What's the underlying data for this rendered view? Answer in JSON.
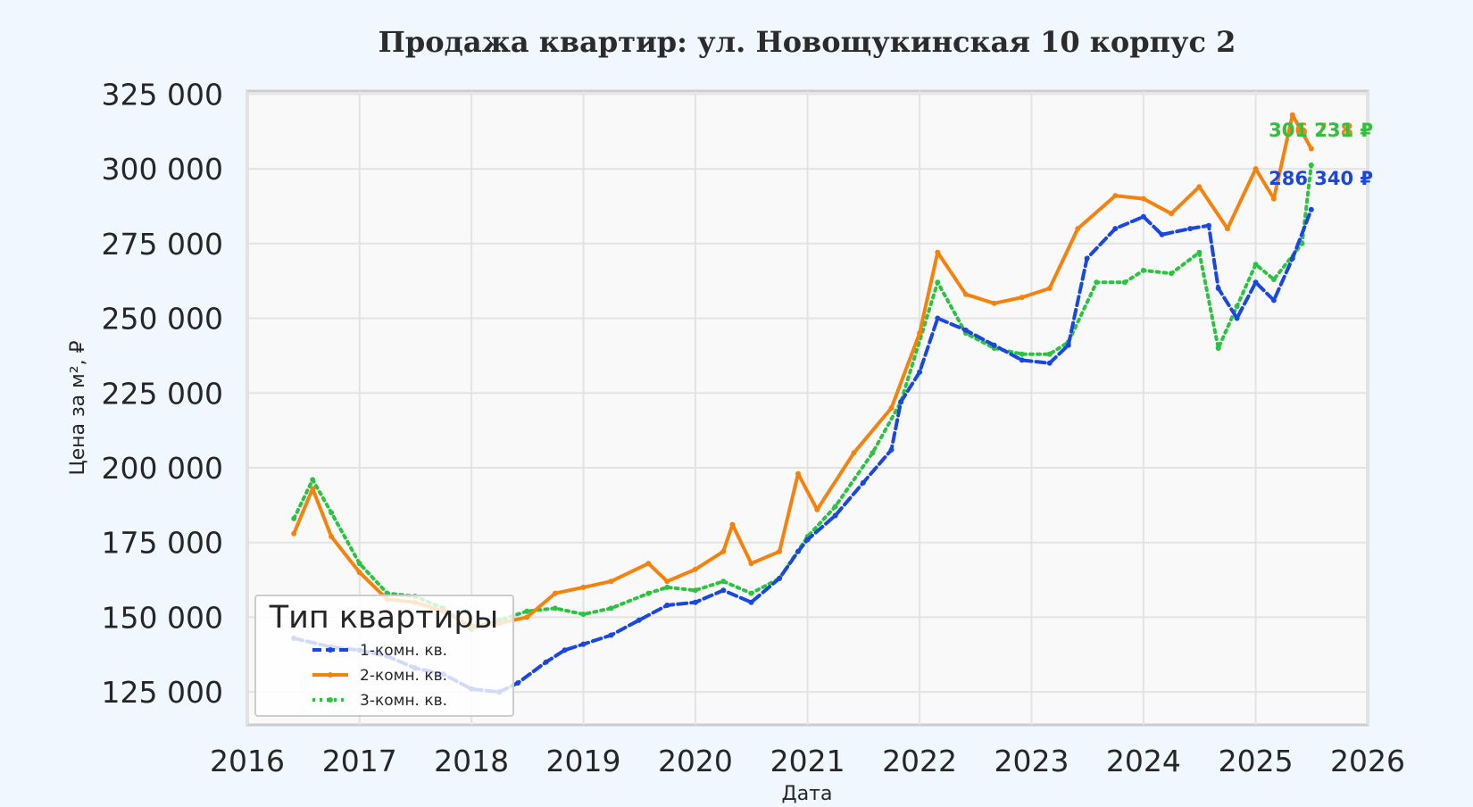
{
  "chart_data": {
    "type": "line",
    "title": "Продажа квартир: ул. Новощукинская 10 корпус 2",
    "xlabel": "Дата",
    "ylabel": "Цена за м², ₽",
    "xlim": [
      "2016-01-01",
      "2026-01-01"
    ],
    "ylim": [
      114000,
      326000
    ],
    "x_ticks": [
      "2016",
      "2017",
      "2018",
      "2019",
      "2020",
      "2021",
      "2022",
      "2023",
      "2024",
      "2025",
      "2026"
    ],
    "y_ticks": [
      125000,
      150000,
      175000,
      200000,
      225000,
      250000,
      275000,
      300000,
      325000
    ],
    "y_tick_labels": [
      "125 000",
      "150 000",
      "175 000",
      "200 000",
      "225 000",
      "250 000",
      "275 000",
      "300 000",
      "325 000"
    ],
    "grid": true,
    "legend": {
      "title": "Тип квартиры",
      "placement": "lower-left",
      "entries": [
        "1-комн. кв.",
        "2-комн. кв.",
        "3-комн. кв."
      ]
    },
    "series": [
      {
        "name": "1-комн. кв.",
        "color": "#1a47e0",
        "style": "dashed",
        "last_label": "286 340 ₽",
        "points": [
          [
            "2016-06-01",
            143000
          ],
          [
            "2016-10-01",
            140000
          ],
          [
            "2017-01-01",
            139000
          ],
          [
            "2017-04-01",
            137000
          ],
          [
            "2017-07-01",
            133000
          ],
          [
            "2017-10-01",
            131000
          ],
          [
            "2018-01-01",
            126000
          ],
          [
            "2018-04-01",
            125000
          ],
          [
            "2018-06-01",
            128000
          ],
          [
            "2018-09-01",
            135000
          ],
          [
            "2018-11-01",
            139000
          ],
          [
            "2019-01-01",
            141000
          ],
          [
            "2019-04-01",
            144000
          ],
          [
            "2019-07-01",
            149000
          ],
          [
            "2019-10-01",
            154000
          ],
          [
            "2020-01-01",
            155000
          ],
          [
            "2020-04-01",
            159000
          ],
          [
            "2020-07-01",
            155000
          ],
          [
            "2020-10-01",
            163000
          ],
          [
            "2020-12-01",
            172000
          ],
          [
            "2021-01-01",
            176000
          ],
          [
            "2021-04-01",
            184000
          ],
          [
            "2021-07-01",
            195000
          ],
          [
            "2021-10-01",
            206000
          ],
          [
            "2021-11-01",
            222000
          ],
          [
            "2022-01-01",
            232000
          ],
          [
            "2022-03-01",
            250000
          ],
          [
            "2022-06-01",
            246000
          ],
          [
            "2022-09-01",
            241000
          ],
          [
            "2022-12-01",
            236000
          ],
          [
            "2023-03-01",
            235000
          ],
          [
            "2023-05-01",
            241000
          ],
          [
            "2023-07-01",
            270000
          ],
          [
            "2023-10-01",
            280000
          ],
          [
            "2024-01-01",
            284000
          ],
          [
            "2024-03-01",
            278000
          ],
          [
            "2024-06-01",
            280000
          ],
          [
            "2024-08-01",
            281000
          ],
          [
            "2024-09-01",
            260000
          ],
          [
            "2024-11-01",
            250000
          ],
          [
            "2025-01-01",
            262000
          ],
          [
            "2025-03-01",
            256000
          ],
          [
            "2025-05-01",
            270000
          ],
          [
            "2025-07-01",
            286340
          ]
        ]
      },
      {
        "name": "2-комн. кв.",
        "color": "#f5820d",
        "style": "solid",
        "last_label": "306 738 ₽",
        "points": [
          [
            "2016-06-01",
            178000
          ],
          [
            "2016-08-01",
            193000
          ],
          [
            "2016-10-01",
            177000
          ],
          [
            "2017-01-01",
            165000
          ],
          [
            "2017-04-01",
            156000
          ],
          [
            "2017-07-01",
            155000
          ],
          [
            "2017-10-01",
            152000
          ],
          [
            "2018-01-01",
            147000
          ],
          [
            "2018-04-01",
            148000
          ],
          [
            "2018-07-01",
            150000
          ],
          [
            "2018-10-01",
            158000
          ],
          [
            "2019-01-01",
            160000
          ],
          [
            "2019-04-01",
            162000
          ],
          [
            "2019-08-01",
            168000
          ],
          [
            "2019-10-01",
            162000
          ],
          [
            "2020-01-01",
            166000
          ],
          [
            "2020-04-01",
            172000
          ],
          [
            "2020-05-01",
            181000
          ],
          [
            "2020-07-01",
            168000
          ],
          [
            "2020-10-01",
            172000
          ],
          [
            "2020-12-01",
            198000
          ],
          [
            "2021-02-01",
            186000
          ],
          [
            "2021-06-01",
            205000
          ],
          [
            "2021-10-01",
            220000
          ],
          [
            "2022-01-01",
            245000
          ],
          [
            "2022-03-01",
            272000
          ],
          [
            "2022-06-01",
            258000
          ],
          [
            "2022-09-01",
            255000
          ],
          [
            "2022-12-01",
            257000
          ],
          [
            "2023-03-01",
            260000
          ],
          [
            "2023-06-01",
            280000
          ],
          [
            "2023-10-01",
            291000
          ],
          [
            "2024-01-01",
            290000
          ],
          [
            "2024-04-01",
            285000
          ],
          [
            "2024-07-01",
            294000
          ],
          [
            "2024-10-01",
            280000
          ],
          [
            "2025-01-01",
            300000
          ],
          [
            "2025-03-01",
            290000
          ],
          [
            "2025-05-01",
            318000
          ],
          [
            "2025-07-01",
            306738
          ]
        ]
      },
      {
        "name": "3-комн. кв.",
        "color": "#2ec243",
        "style": "dotted",
        "last_label": "301 231 ₽",
        "points": [
          [
            "2016-06-01",
            183000
          ],
          [
            "2016-08-01",
            196000
          ],
          [
            "2016-10-01",
            185000
          ],
          [
            "2017-01-01",
            168000
          ],
          [
            "2017-04-01",
            158000
          ],
          [
            "2017-07-01",
            157000
          ],
          [
            "2017-10-01",
            153000
          ],
          [
            "2018-01-01",
            146000
          ],
          [
            "2018-04-01",
            149000
          ],
          [
            "2018-07-01",
            152000
          ],
          [
            "2018-10-01",
            153000
          ],
          [
            "2019-01-01",
            151000
          ],
          [
            "2019-04-01",
            153000
          ],
          [
            "2019-08-01",
            158000
          ],
          [
            "2019-10-01",
            160000
          ],
          [
            "2020-01-01",
            159000
          ],
          [
            "2020-04-01",
            162000
          ],
          [
            "2020-07-01",
            158000
          ],
          [
            "2020-10-01",
            163000
          ],
          [
            "2021-01-01",
            177000
          ],
          [
            "2021-04-01",
            187000
          ],
          [
            "2021-08-01",
            205000
          ],
          [
            "2021-11-01",
            222000
          ],
          [
            "2022-03-01",
            262000
          ],
          [
            "2022-06-01",
            245000
          ],
          [
            "2022-09-01",
            240000
          ],
          [
            "2022-12-01",
            238000
          ],
          [
            "2023-03-01",
            238000
          ],
          [
            "2023-05-01",
            242000
          ],
          [
            "2023-08-01",
            262000
          ],
          [
            "2023-11-01",
            262000
          ],
          [
            "2024-01-01",
            266000
          ],
          [
            "2024-04-01",
            265000
          ],
          [
            "2024-07-01",
            272000
          ],
          [
            "2024-09-01",
            240000
          ],
          [
            "2024-11-01",
            254000
          ],
          [
            "2025-01-01",
            268000
          ],
          [
            "2025-03-01",
            263000
          ],
          [
            "2025-06-01",
            275000
          ],
          [
            "2025-07-01",
            301231
          ]
        ]
      }
    ]
  }
}
